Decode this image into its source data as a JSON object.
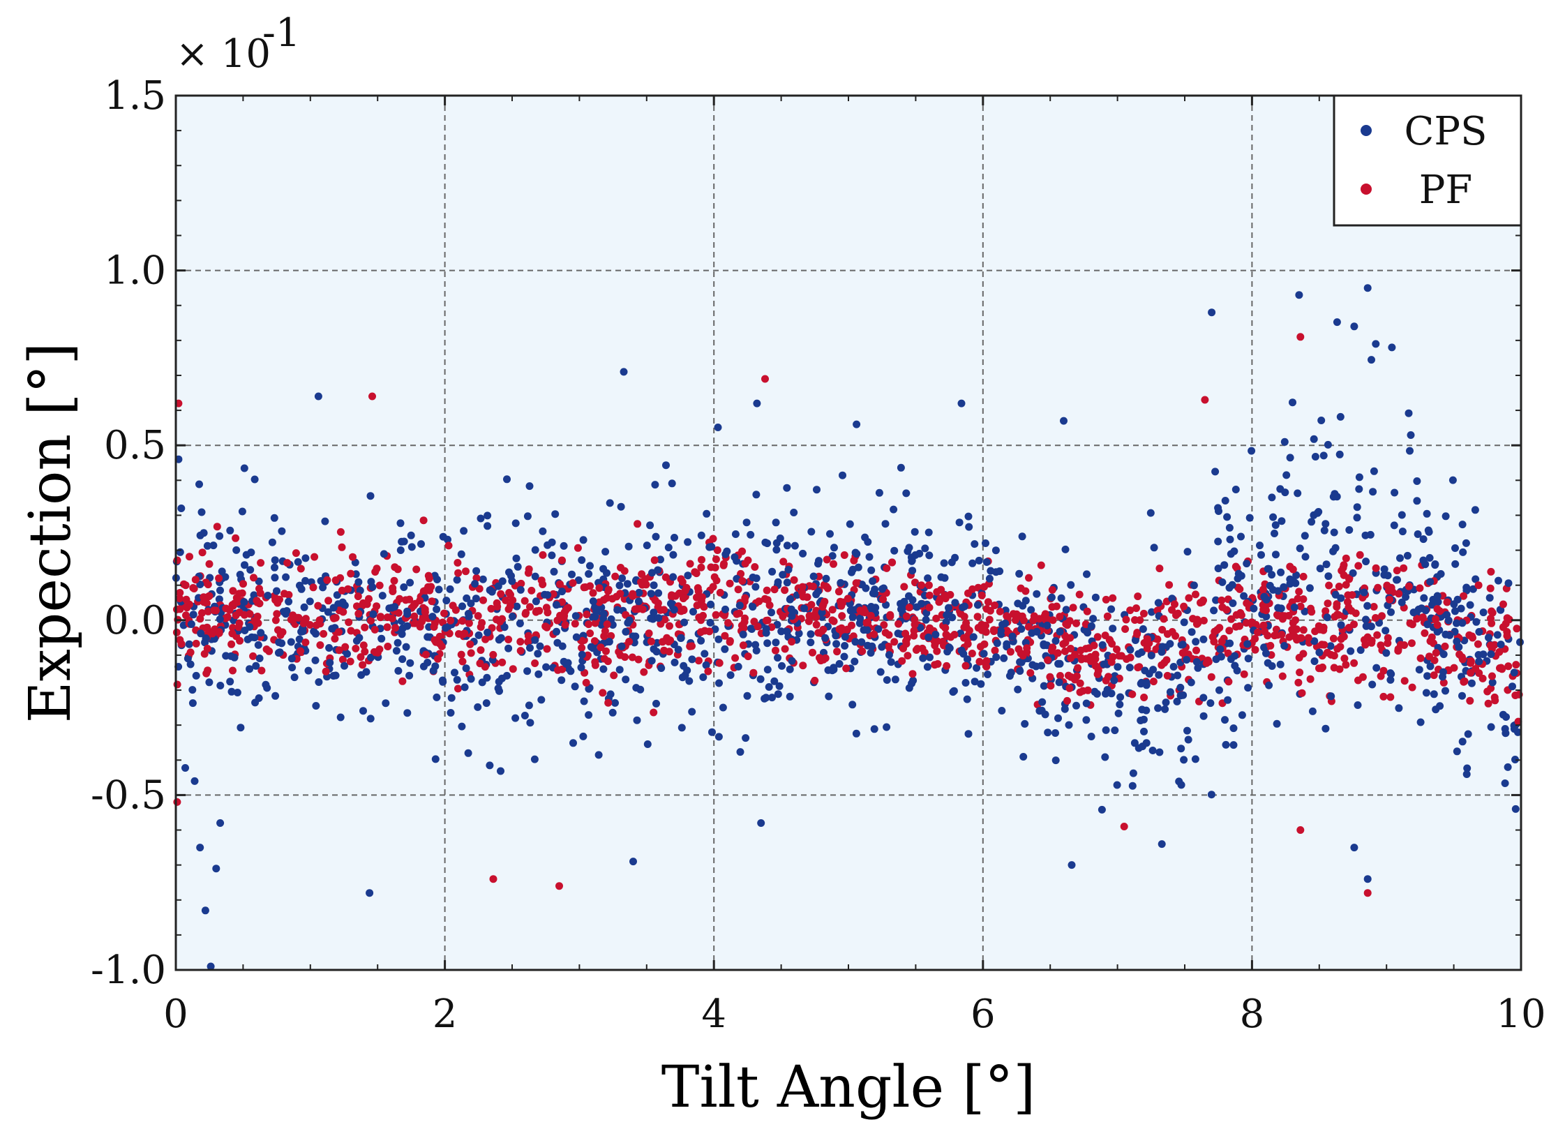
{
  "chart_data": {
    "type": "scatter",
    "title": "",
    "xlabel": "Tilt Angle [°]",
    "ylabel": "Expection [°]",
    "y_scale_multiplier": "× 10",
    "y_scale_exponent": "-1",
    "xlim": [
      0,
      10
    ],
    "ylim": [
      -1.0,
      1.5
    ],
    "x_ticks": [
      0,
      2,
      4,
      6,
      8,
      10
    ],
    "x_tick_labels": [
      "0",
      "2",
      "4",
      "6",
      "8",
      "10"
    ],
    "y_ticks": [
      -1.0,
      -0.5,
      0.0,
      0.5,
      1.0,
      1.5
    ],
    "y_tick_labels": [
      "-1.0",
      "-0.5",
      "0.0",
      "0.5",
      "1.0",
      "1.5"
    ],
    "grid": true,
    "legend_position": "top-right",
    "point_count_per_series": 1400,
    "series": [
      {
        "name": "CPS",
        "color": "#1a3a8f",
        "notable_points": [
          {
            "x": 0.02,
            "y": 0.46
          },
          {
            "x": 0.14,
            "y": -0.46
          },
          {
            "x": 0.18,
            "y": -0.65
          },
          {
            "x": 0.22,
            "y": -0.83
          },
          {
            "x": 0.26,
            "y": -0.99
          },
          {
            "x": 0.3,
            "y": -0.71
          },
          {
            "x": 0.33,
            "y": -0.58
          },
          {
            "x": 1.06,
            "y": 0.64
          },
          {
            "x": 1.44,
            "y": -0.78
          },
          {
            "x": 3.33,
            "y": 0.71
          },
          {
            "x": 3.4,
            "y": -0.69
          },
          {
            "x": 4.32,
            "y": 0.62
          },
          {
            "x": 4.35,
            "y": -0.58
          },
          {
            "x": 5.06,
            "y": 0.56
          },
          {
            "x": 5.84,
            "y": 0.62
          },
          {
            "x": 6.6,
            "y": 0.57
          },
          {
            "x": 6.66,
            "y": -0.7
          },
          {
            "x": 7.33,
            "y": -0.64
          },
          {
            "x": 7.7,
            "y": 0.88
          },
          {
            "x": 8.35,
            "y": 0.93
          },
          {
            "x": 8.76,
            "y": 0.84
          },
          {
            "x": 8.86,
            "y": 0.95
          },
          {
            "x": 8.92,
            "y": 0.79
          },
          {
            "x": 9.04,
            "y": 0.78
          },
          {
            "x": 8.76,
            "y": -0.65
          },
          {
            "x": 8.86,
            "y": -0.74
          },
          {
            "x": 9.96,
            "y": -0.54
          }
        ],
        "trend": [
          {
            "x": 0.0,
            "mean": 0.0,
            "spread": 0.22
          },
          {
            "x": 1.0,
            "mean": 0.02,
            "spread": 0.2
          },
          {
            "x": 2.0,
            "mean": 0.0,
            "spread": 0.2
          },
          {
            "x": 3.0,
            "mean": -0.05,
            "spread": 0.22
          },
          {
            "x": 4.0,
            "mean": 0.0,
            "spread": 0.22
          },
          {
            "x": 5.0,
            "mean": 0.05,
            "spread": 0.2
          },
          {
            "x": 6.0,
            "mean": 0.0,
            "spread": 0.18
          },
          {
            "x": 7.0,
            "mean": -0.2,
            "spread": 0.18
          },
          {
            "x": 8.0,
            "mean": 0.05,
            "spread": 0.26
          },
          {
            "x": 8.6,
            "mean": 0.15,
            "spread": 0.32
          },
          {
            "x": 9.3,
            "mean": 0.05,
            "spread": 0.25
          },
          {
            "x": 10.0,
            "mean": -0.25,
            "spread": 0.18
          }
        ]
      },
      {
        "name": "PF",
        "color": "#c8102e",
        "notable_points": [
          {
            "x": 0.02,
            "y": 0.62
          },
          {
            "x": 0.01,
            "y": -0.52
          },
          {
            "x": 1.46,
            "y": 0.64
          },
          {
            "x": 2.36,
            "y": -0.74
          },
          {
            "x": 2.85,
            "y": -0.76
          },
          {
            "x": 4.38,
            "y": 0.69
          },
          {
            "x": 7.65,
            "y": 0.63
          },
          {
            "x": 8.36,
            "y": 0.81
          },
          {
            "x": 8.36,
            "y": -0.6
          },
          {
            "x": 8.86,
            "y": -0.78
          },
          {
            "x": 7.05,
            "y": -0.59
          },
          {
            "x": 9.98,
            "y": -0.29
          }
        ],
        "trend": [
          {
            "x": 0.0,
            "mean": 0.02,
            "spread": 0.12
          },
          {
            "x": 1.0,
            "mean": 0.0,
            "spread": 0.1
          },
          {
            "x": 2.0,
            "mean": 0.02,
            "spread": 0.1
          },
          {
            "x": 3.0,
            "mean": 0.0,
            "spread": 0.11
          },
          {
            "x": 4.0,
            "mean": 0.03,
            "spread": 0.11
          },
          {
            "x": 5.0,
            "mean": 0.0,
            "spread": 0.1
          },
          {
            "x": 6.0,
            "mean": -0.02,
            "spread": 0.09
          },
          {
            "x": 7.0,
            "mean": -0.08,
            "spread": 0.1
          },
          {
            "x": 8.0,
            "mean": 0.0,
            "spread": 0.11
          },
          {
            "x": 9.0,
            "mean": 0.0,
            "spread": 0.14
          },
          {
            "x": 10.0,
            "mean": -0.1,
            "spread": 0.12
          }
        ]
      }
    ]
  },
  "colors": {
    "plot_background": "#eef6fc",
    "grid": "#666666",
    "axis": "#222222"
  }
}
